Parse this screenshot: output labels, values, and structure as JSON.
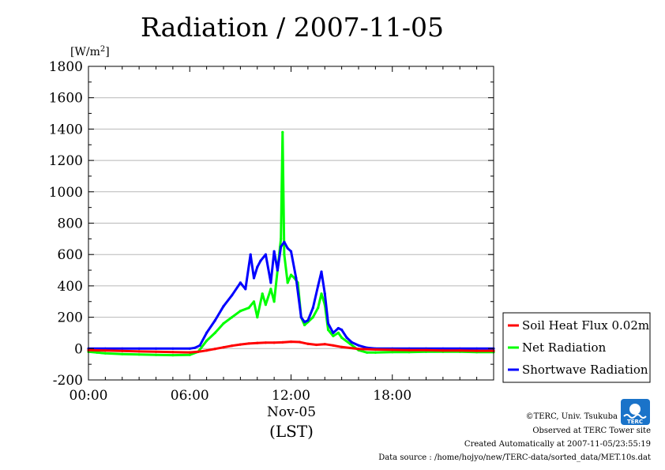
{
  "chart_data": {
    "type": "line",
    "title": "Radiation / 2007-11-05",
    "ylabel_unit": "[W/m",
    "ylabel_unit_sup": "2",
    "ylabel_unit_close": "]",
    "xlabel": "(LST)",
    "x_date_label": "Nov-05",
    "ylim": [
      -200,
      1800
    ],
    "y_ticks": [
      -200,
      0,
      200,
      400,
      600,
      800,
      1000,
      1200,
      1400,
      1600,
      1800
    ],
    "x_ticks": [
      "00:00",
      "06:00",
      "12:00",
      "18:00"
    ],
    "x_unit": "hours (LST)",
    "xlim": [
      0,
      24
    ],
    "grid": true,
    "legend_placement": "right",
    "series": [
      {
        "name": "Soil Heat Flux 0.02m",
        "color": "#ff0000",
        "x": [
          0,
          1,
          2,
          3,
          4,
          5,
          6,
          6.5,
          7,
          7.5,
          8,
          8.5,
          9,
          9.5,
          10,
          10.5,
          11,
          11.5,
          12,
          12.5,
          13,
          13.5,
          14,
          14.5,
          15,
          15.5,
          16,
          17,
          18,
          19,
          20,
          21,
          22,
          23,
          24
        ],
        "values": [
          -10,
          -12,
          -15,
          -18,
          -20,
          -22,
          -24,
          -20,
          -12,
          -2,
          8,
          18,
          26,
          32,
          36,
          38,
          38,
          40,
          44,
          42,
          30,
          24,
          28,
          20,
          10,
          4,
          -2,
          -6,
          -8,
          -10,
          -10,
          -12,
          -12,
          -14,
          -14
        ]
      },
      {
        "name": "Net Radiation",
        "color": "#00ff00",
        "x": [
          0,
          0.5,
          1,
          2,
          3,
          4,
          5,
          6,
          6.5,
          7,
          7.5,
          8,
          8.5,
          9,
          9.5,
          9.8,
          10,
          10.3,
          10.5,
          10.8,
          11,
          11.2,
          11.4,
          11.5,
          11.6,
          11.8,
          12,
          12.2,
          12.4,
          12.6,
          12.8,
          13,
          13.3,
          13.6,
          13.8,
          14,
          14.2,
          14.5,
          14.8,
          15,
          15.5,
          16,
          16.5,
          17,
          18,
          19,
          20,
          21,
          22,
          23,
          24
        ],
        "values": [
          -20,
          -25,
          -30,
          -35,
          -38,
          -40,
          -42,
          -40,
          -20,
          50,
          100,
          160,
          200,
          240,
          260,
          300,
          200,
          350,
          280,
          380,
          300,
          500,
          700,
          1380,
          600,
          420,
          470,
          450,
          420,
          200,
          150,
          170,
          200,
          260,
          350,
          280,
          120,
          80,
          100,
          70,
          30,
          -10,
          -25,
          -25,
          -22,
          -22,
          -20,
          -20,
          -20,
          -22,
          -22
        ]
      },
      {
        "name": "Shortwave Radiation",
        "color": "#0000ff",
        "x": [
          0,
          1,
          2,
          3,
          4,
          5,
          6,
          6.3,
          6.6,
          7,
          7.5,
          8,
          8.5,
          9,
          9.3,
          9.6,
          9.8,
          10,
          10.2,
          10.5,
          10.8,
          11,
          11.2,
          11.4,
          11.6,
          11.8,
          12,
          12.3,
          12.6,
          12.8,
          13,
          13.3,
          13.6,
          13.8,
          14,
          14.2,
          14.5,
          14.8,
          15,
          15.3,
          15.6,
          16,
          16.5,
          17,
          18,
          19,
          20,
          21,
          22,
          23,
          24
        ],
        "values": [
          0,
          0,
          0,
          0,
          0,
          0,
          0,
          5,
          20,
          100,
          180,
          270,
          340,
          420,
          380,
          600,
          450,
          520,
          560,
          600,
          420,
          620,
          500,
          650,
          680,
          640,
          620,
          450,
          200,
          170,
          180,
          260,
          400,
          490,
          350,
          160,
          100,
          130,
          120,
          70,
          40,
          20,
          5,
          0,
          0,
          0,
          0,
          0,
          0,
          0,
          0
        ]
      }
    ],
    "annotations": {
      "copyright": "©TERC, Univ. Tsukuba",
      "observed": "Observed at TERC Tower site",
      "created": "Created Automatically at 2007-11-05/23:55:19",
      "source": "Data source : /home/hojyo/new/TERC-data/sorted_data/MET.10s.dat",
      "logo_text": "TERC"
    }
  }
}
